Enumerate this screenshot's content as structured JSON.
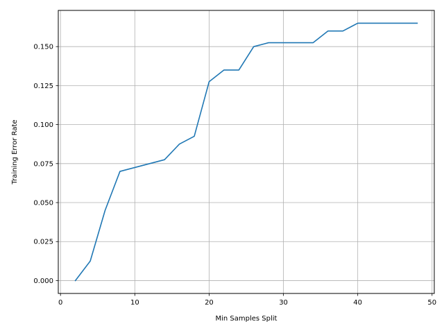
{
  "chart_data": {
    "type": "line",
    "title": "",
    "xlabel": "Min Samples Split",
    "ylabel": "Training Error Rate",
    "xlim": [
      -0.3,
      50.3
    ],
    "ylim": [
      -0.00825,
      0.1732
    ],
    "grid": true,
    "x_ticks": [
      0,
      10,
      20,
      30,
      40,
      50
    ],
    "x_tick_labels": [
      "0",
      "10",
      "20",
      "30",
      "40",
      "50"
    ],
    "y_ticks": [
      0.0,
      0.025,
      0.05,
      0.075,
      0.1,
      0.125,
      0.15
    ],
    "y_tick_labels": [
      "0.000",
      "0.025",
      "0.050",
      "0.075",
      "0.100",
      "0.125",
      "0.150"
    ],
    "line_color": "#1f77b4",
    "series": [
      {
        "x": [
          2,
          4,
          6,
          8,
          10,
          12,
          14,
          16,
          18,
          20,
          22,
          24,
          26,
          28,
          30,
          32,
          34,
          36,
          38,
          40,
          42,
          44,
          46,
          48
        ],
        "y": [
          0.0,
          0.0125,
          0.045,
          0.07,
          0.0725,
          0.075,
          0.0775,
          0.0875,
          0.0925,
          0.1275,
          0.135,
          0.135,
          0.15,
          0.1525,
          0.1525,
          0.1525,
          0.1525,
          0.16,
          0.16,
          0.165,
          0.165,
          0.165,
          0.165,
          0.165
        ]
      }
    ]
  }
}
